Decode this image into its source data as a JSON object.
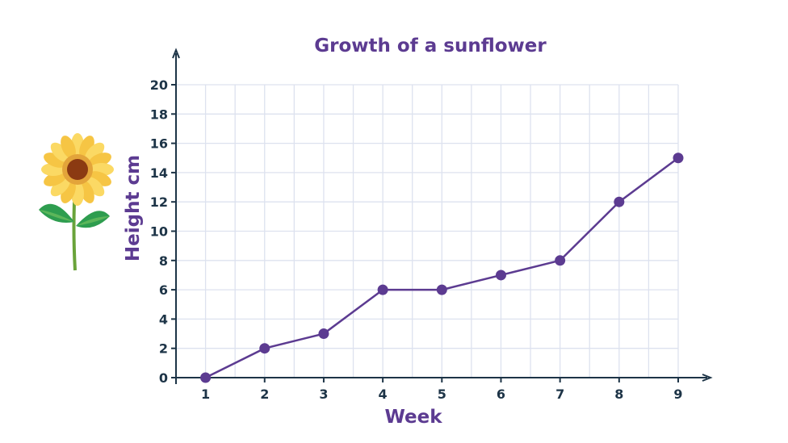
{
  "chart_data": {
    "type": "line",
    "title": "Growth of a sunflower",
    "xlabel": "Week",
    "ylabel": "Height cm",
    "x": [
      1,
      2,
      3,
      4,
      5,
      6,
      7,
      8,
      9
    ],
    "series": [
      {
        "values": [
          0,
          2,
          3,
          6,
          6,
          7,
          8,
          12,
          15
        ]
      }
    ],
    "xticks": [
      "1",
      "2",
      "3",
      "4",
      "5",
      "6",
      "7",
      "8",
      "9"
    ],
    "yticks": [
      "0",
      "2",
      "4",
      "6",
      "8",
      "10",
      "12",
      "14",
      "16",
      "18",
      "20"
    ],
    "xlim": [
      0.5,
      9
    ],
    "ylim": [
      0,
      20
    ],
    "grid": true,
    "colors": {
      "series": "#5c3b91",
      "title": "#5c3b91",
      "axis": "#1d3447",
      "grid": "#dde2ef"
    },
    "decoration": "sunflower-icon"
  }
}
